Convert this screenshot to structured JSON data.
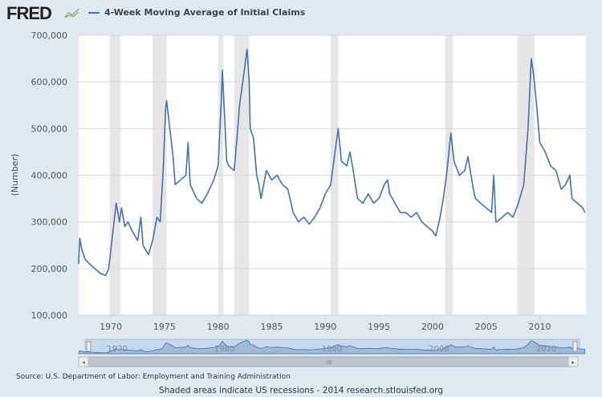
{
  "header": {
    "logo": "FRED",
    "title": "4-Week Moving Average of Initial Claims"
  },
  "footer": {
    "source": "Source: U.S. Department of Labor: Employment and Training Administration",
    "note": "Shaded areas indicate US recessions - 2014 research.stlouisfed.org"
  },
  "colors": {
    "series": "#4572a7",
    "recession": "#e6e6e6",
    "navigator": "#9fb9db"
  },
  "chart_data": {
    "type": "line",
    "title": "4-Week Moving Average of Initial Claims",
    "ylabel": "(Number)",
    "xlim": [
      1967,
      2014.3
    ],
    "ylim": [
      100000,
      700000
    ],
    "yticks": [
      "100,000",
      "200,000",
      "300,000",
      "400,000",
      "500,000",
      "600,000",
      "700,000"
    ],
    "xticks": [
      "1970",
      "1975",
      "1980",
      "1985",
      "1990",
      "1995",
      "2000",
      "2005",
      "2010"
    ],
    "navigator_ticks": [
      "1970",
      "1980",
      "1990",
      "2000",
      "2010"
    ],
    "grid": "horizontal",
    "recessions": [
      [
        1969.9,
        1970.9
      ],
      [
        1973.9,
        1975.2
      ],
      [
        1980.0,
        1980.5
      ],
      [
        1981.5,
        1982.9
      ],
      [
        1990.5,
        1991.2
      ],
      [
        2001.2,
        2001.9
      ],
      [
        2007.9,
        2009.5
      ]
    ],
    "series": [
      {
        "x": [
          1967.0,
          1967.1,
          1967.3,
          1967.6,
          1968,
          1968.5,
          1969,
          1969.5,
          1969.8,
          1970.2,
          1970.5,
          1970.8,
          1971,
          1971.3,
          1971.6,
          1972,
          1972.5,
          1972.8,
          1973,
          1973.5,
          1973.9,
          1974.3,
          1974.6,
          1974.9,
          1975.1,
          1975.2,
          1975.5,
          1975.8,
          1976,
          1976.5,
          1977,
          1977.2,
          1977.4,
          1978,
          1978.5,
          1979,
          1979.6,
          1980.0,
          1980.3,
          1980.4,
          1980.6,
          1980.8,
          1981,
          1981.5,
          1981.8,
          1982,
          1982.3,
          1982.7,
          1982.9,
          1983,
          1983.3,
          1983.6,
          1983.8,
          1984,
          1984.5,
          1985,
          1985.5,
          1986,
          1986.5,
          1987,
          1987.5,
          1988,
          1988.5,
          1989,
          1989.5,
          1990,
          1990.5,
          1990.9,
          1991.2,
          1991.5,
          1992,
          1992.3,
          1992.6,
          1993,
          1993.5,
          1994,
          1994.5,
          1995,
          1995.5,
          1995.8,
          1996,
          1996.5,
          1997,
          1997.5,
          1998,
          1998.5,
          1999,
          1999.5,
          2000,
          2000.3,
          2000.7,
          2001,
          2001.3,
          2001.7,
          2002,
          2002.5,
          2003,
          2003.3,
          2003.8,
          2004,
          2004.5,
          2005,
          2005.5,
          2005.7,
          2005.9,
          2006,
          2006.5,
          2007,
          2007.5,
          2008,
          2008.5,
          2008.9,
          2009.2,
          2009.4,
          2009.7,
          2010,
          2010.5,
          2011,
          2011.5,
          2012,
          2012.4,
          2012.8,
          2013,
          2013.5,
          2014,
          2014.2
        ],
        "y": [
          210000,
          265000,
          240000,
          220000,
          210000,
          200000,
          190000,
          185000,
          200000,
          280000,
          340000,
          300000,
          330000,
          290000,
          300000,
          280000,
          260000,
          310000,
          250000,
          230000,
          260000,
          310000,
          300000,
          420000,
          540000,
          560000,
          500000,
          440000,
          380000,
          390000,
          400000,
          470000,
          380000,
          350000,
          340000,
          360000,
          390000,
          420000,
          560000,
          625000,
          530000,
          430000,
          420000,
          410000,
          490000,
          550000,
          600000,
          670000,
          600000,
          500000,
          480000,
          400000,
          380000,
          350000,
          410000,
          390000,
          400000,
          380000,
          370000,
          320000,
          300000,
          310000,
          295000,
          310000,
          330000,
          360000,
          380000,
          450000,
          500000,
          430000,
          420000,
          450000,
          410000,
          350000,
          340000,
          360000,
          340000,
          350000,
          380000,
          390000,
          360000,
          340000,
          320000,
          320000,
          310000,
          320000,
          300000,
          290000,
          280000,
          270000,
          310000,
          350000,
          400000,
          490000,
          430000,
          400000,
          410000,
          440000,
          370000,
          350000,
          340000,
          330000,
          320000,
          400000,
          300000,
          300000,
          310000,
          320000,
          310000,
          340000,
          380000,
          500000,
          650000,
          620000,
          550000,
          470000,
          450000,
          420000,
          410000,
          370000,
          380000,
          400000,
          350000,
          340000,
          330000,
          320000
        ]
      }
    ]
  }
}
